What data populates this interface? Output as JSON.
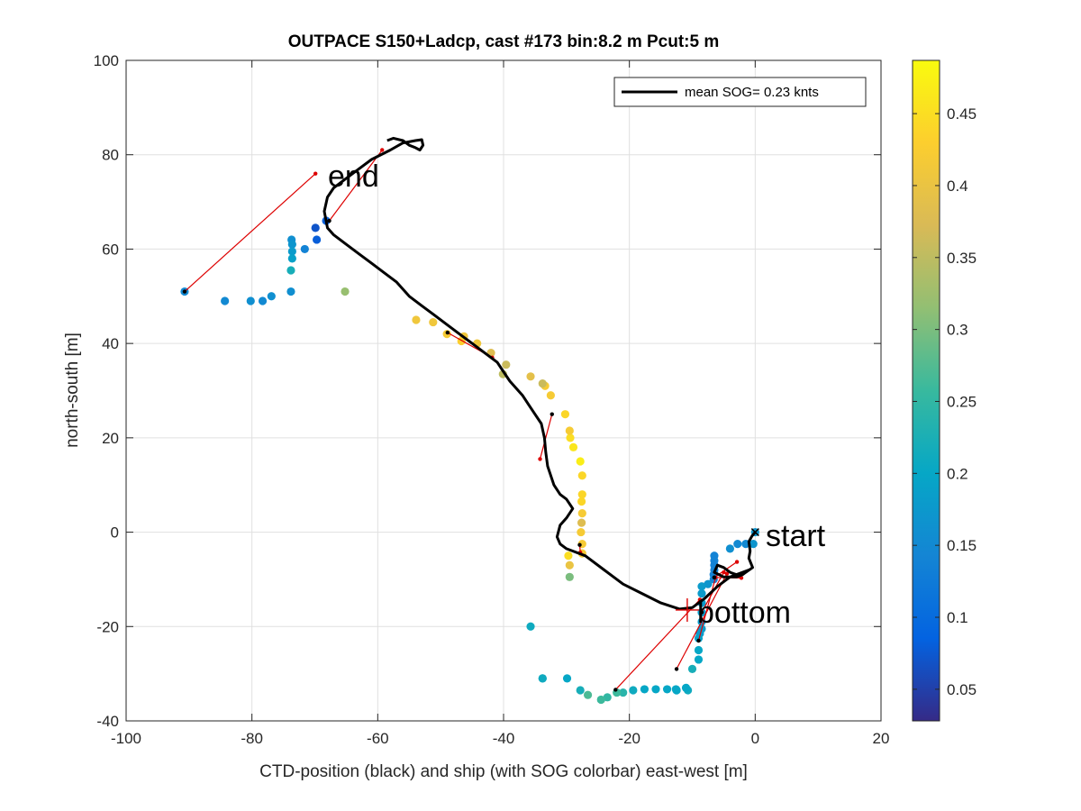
{
  "chart_data": {
    "type": "scatter",
    "title": "OUTPACE S150+Ladcp, cast #173 bin:8.2 m  Pcut:5 m",
    "xlabel": "CTD-position (black) and ship (with SOG colorbar) east-west [m]",
    "ylabel": "north-south [m]",
    "xlim": [
      -100,
      20
    ],
    "ylim": [
      -40,
      100
    ],
    "xticks": [
      -100,
      -80,
      -60,
      -40,
      -20,
      0,
      20
    ],
    "yticks": [
      -40,
      -20,
      0,
      20,
      40,
      60,
      80,
      100
    ],
    "grid": true,
    "legend": {
      "placement": "top-right",
      "entries": [
        "mean SOG=  0.23 knts"
      ]
    },
    "annotations": [
      {
        "text": "start",
        "x": 1.2,
        "y": -0.8
      },
      {
        "text": "bottom",
        "x": -9.8,
        "y": -17.8
      },
      {
        "text": "end",
        "x": -68.5,
        "y": 74.5
      }
    ],
    "colorbar": {
      "clim": [
        0.028,
        0.487
      ],
      "ticks": [
        0.05,
        0.1,
        0.15,
        0.2,
        0.25,
        0.3,
        0.35,
        0.4,
        0.45
      ],
      "tick_labels": [
        "0.05",
        "0.1",
        "0.15",
        "0.2",
        "0.25",
        "0.3",
        "0.35",
        "0.4",
        "0.45"
      ],
      "colormap": "parula"
    },
    "ctd_track": {
      "name": "CTD-position",
      "color": "#000000",
      "x": [
        0,
        -0.5,
        -1,
        -0.8,
        -1,
        -0.4,
        -1.5,
        -3,
        -4,
        -5,
        -6,
        -6.5,
        -5,
        -3,
        -2,
        -1,
        -4,
        -6,
        -8,
        -10,
        -12,
        -15,
        -18,
        -21,
        -24,
        -27,
        -29,
        -30,
        -31,
        -31.5,
        -31,
        -30,
        -29,
        -30,
        -31,
        -32,
        -33,
        -33.3,
        -33.5,
        -34,
        -35,
        -36,
        -37,
        -38,
        -39,
        -40,
        -41,
        -43,
        -45,
        -47,
        -49,
        -51,
        -53,
        -55,
        -57,
        -59,
        -61,
        -63,
        -65,
        -67,
        -68,
        -68.5,
        -68,
        -67,
        -65,
        -63,
        -61,
        -58,
        -56,
        -54,
        -53,
        -52.8,
        -53.3,
        -54,
        -55,
        -56,
        -57.5,
        -58.5
      ],
      "y": [
        0,
        -0.8,
        -2,
        -4,
        -5.5,
        -7.5,
        -8.5,
        -9,
        -8.5,
        -7.5,
        -7,
        -8.5,
        -9.5,
        -9.5,
        -9,
        -8,
        -9.5,
        -11.5,
        -14,
        -16,
        -16.3,
        -15,
        -13,
        -11,
        -8,
        -5,
        -4,
        -3.5,
        -2.5,
        -1,
        1.5,
        3,
        5,
        7,
        8,
        10,
        14,
        17,
        20,
        23,
        25,
        27,
        29,
        30.5,
        32,
        34,
        36,
        38,
        40,
        42,
        44,
        46,
        48,
        50,
        53,
        55,
        57,
        59,
        61,
        63,
        64.5,
        68,
        71,
        73,
        75,
        77,
        79,
        81,
        82.5,
        83,
        83.2,
        82,
        81,
        81.5,
        82,
        83,
        83.5,
        83
      ]
    },
    "ship_points": {
      "name": "ship (with SOG colorbar)",
      "x": [
        0,
        -0.3,
        -1.5,
        -2.8,
        -4,
        -6.5,
        -6.5,
        -6.5,
        -6.5,
        -6.6,
        -6.6,
        -7.5,
        -8.5,
        -8.5,
        -8.5,
        -8.5,
        -8.5,
        -8.5,
        -8.8,
        -9,
        -9,
        -9,
        -10,
        -10.7,
        -11,
        -12.5,
        -12.5,
        -12.6,
        -14,
        -15.8,
        -17.6,
        -19.4,
        -21,
        -22,
        -23.5,
        -24.5,
        -26.6,
        -27.8,
        -29.9,
        -33.8,
        -35.7,
        -33.8,
        -29.5,
        -29.5,
        -29.7,
        -27.5,
        -27.5,
        -27.7,
        -27.6,
        -27.5,
        -27.6,
        -27.5,
        -27.5,
        -27.8,
        -28.9,
        -29.4,
        -29.5,
        -30.2,
        -32.5,
        -33.4,
        -33.8,
        -35.7,
        -39.6,
        -40.1,
        -42,
        -44.2,
        -46.3,
        -46.7,
        -49,
        -51.2,
        -53.9,
        -65.2,
        -68.2,
        -69.9,
        -69.7,
        -71.6,
        -73.7,
        -73.6,
        -73.6,
        -73.6,
        -73.8,
        -73.8,
        -76.9,
        -78.3,
        -80.2,
        -84.3,
        -90.7
      ],
      "y": [
        0,
        -2.5,
        -2.5,
        -2.5,
        -3.5,
        -5,
        -6,
        -7,
        -8,
        -9,
        -10,
        -11,
        -11.5,
        -13,
        -15,
        -17,
        -19,
        -20.5,
        -21.5,
        -22.5,
        -25,
        -27,
        -29,
        -33.5,
        -33,
        -33.5,
        -33.5,
        -33.3,
        -33.3,
        -33.3,
        -33.3,
        -33.5,
        -34,
        -34,
        -35,
        -35.5,
        -34.5,
        -33.5,
        -31,
        -31,
        -20,
        -31,
        -9.5,
        -7,
        -5,
        -4.5,
        -2.5,
        0,
        2,
        4,
        6.5,
        8,
        12,
        15,
        18,
        20,
        21.5,
        25,
        29,
        31,
        31.5,
        33,
        35.5,
        33.5,
        38,
        40,
        41.5,
        40.5,
        42,
        44.5,
        45,
        51,
        66,
        64.5,
        62,
        60,
        62,
        61,
        59.5,
        58,
        55.5,
        51,
        50,
        49,
        49,
        49,
        51
      ],
      "sog": [
        0.17,
        0.17,
        0.15,
        0.15,
        0.16,
        0.14,
        0.14,
        0.14,
        0.14,
        0.14,
        0.14,
        0.17,
        0.18,
        0.18,
        0.18,
        0.18,
        0.18,
        0.18,
        0.18,
        0.19,
        0.2,
        0.2,
        0.22,
        0.21,
        0.2,
        0.21,
        0.2,
        0.2,
        0.2,
        0.2,
        0.2,
        0.21,
        0.24,
        0.26,
        0.25,
        0.26,
        0.27,
        0.22,
        0.2,
        0.2,
        0.21,
        0.21,
        0.3,
        0.4,
        0.45,
        0.42,
        0.42,
        0.42,
        0.38,
        0.42,
        0.44,
        0.44,
        0.44,
        0.47,
        0.46,
        0.45,
        0.42,
        0.44,
        0.42,
        0.42,
        0.36,
        0.39,
        0.36,
        0.35,
        0.38,
        0.41,
        0.41,
        0.43,
        0.42,
        0.41,
        0.41,
        0.32,
        0.08,
        0.07,
        0.08,
        0.14,
        0.16,
        0.17,
        0.18,
        0.19,
        0.22,
        0.16,
        0.16,
        0.15,
        0.16,
        0.15,
        0.15
      ]
    },
    "connection_segments": {
      "name": "ship-to-CTD links",
      "color": "#dd0000",
      "pairs": [
        [
          [
            -90.7,
            51
          ],
          [
            -69.9,
            76
          ]
        ],
        [
          [
            -67.7,
            66
          ],
          [
            -59.3,
            81
          ]
        ],
        [
          [
            -48.9,
            42.3
          ],
          [
            -41.8,
            37
          ]
        ],
        [
          [
            -32.3,
            25
          ],
          [
            -34.2,
            15.5
          ]
        ],
        [
          [
            -27.9,
            -2.7
          ],
          [
            -27.8,
            -4.3
          ]
        ],
        [
          [
            -22.2,
            -33.4
          ],
          [
            -8.8,
            -14.3
          ]
        ],
        [
          [
            -12.5,
            -29
          ],
          [
            -4.5,
            -8.8
          ]
        ],
        [
          [
            -9,
            -23
          ],
          [
            -6.3,
            -9.6
          ]
        ],
        [
          [
            -6.5,
            -9.6
          ],
          [
            -2.9,
            -6.3
          ]
        ],
        [
          [
            -6.5,
            -9.6
          ],
          [
            -2.2,
            -9.7
          ]
        ],
        [
          [
            -8.5,
            -17
          ],
          [
            -5,
            -8.5
          ]
        ]
      ]
    },
    "markers": {
      "bottom_cross": {
        "x": -10.8,
        "y": -16.5,
        "color": "#dd0000"
      },
      "start_cross": {
        "x": 0,
        "y": 0
      }
    }
  }
}
